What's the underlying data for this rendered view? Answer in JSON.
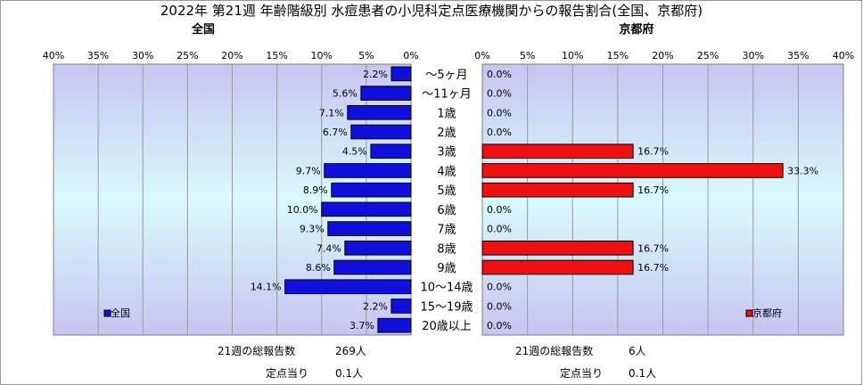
{
  "chart_data": {
    "type": "bar",
    "title": "2022年 第21週 年齢階級別 水痘患者の小児科定点医療機関からの報告割合(全国、京都府)",
    "categories": [
      "～5ヶ月",
      "～11ヶ月",
      "1歳",
      "2歳",
      "3歳",
      "4歳",
      "5歳",
      "6歳",
      "7歳",
      "8歳",
      "9歳",
      "10～14歳",
      "15～19歳",
      "20歳以上"
    ],
    "xlim": [
      0,
      40
    ],
    "tick_labels": [
      "0%",
      "5%",
      "10%",
      "15%",
      "20%",
      "25%",
      "30%",
      "35%",
      "40%"
    ],
    "grid": true,
    "panels": [
      {
        "title": "全国",
        "direction": "left",
        "series_name": "全国",
        "legend": "bottom-left",
        "bar_color": "#1010dd",
        "values": [
          2.2,
          5.6,
          7.1,
          6.7,
          4.5,
          9.7,
          8.9,
          10.0,
          9.3,
          7.4,
          8.6,
          14.1,
          2.2,
          3.7
        ],
        "value_labels": [
          "2.2%",
          "5.6%",
          "7.1%",
          "6.7%",
          "4.5%",
          "9.7%",
          "8.9%",
          "10.0%",
          "9.3%",
          "7.4%",
          "8.6%",
          "14.1%",
          "2.2%",
          "3.7%"
        ],
        "total_label": "21週の総報告数",
        "total_value": "269人",
        "per_site_label": "定点当り",
        "per_site_value": "0.1人"
      },
      {
        "title": "京都府",
        "direction": "right",
        "series_name": "京都府",
        "legend": "bottom-right",
        "bar_color": "#ee1111",
        "values": [
          0.0,
          0.0,
          0.0,
          0.0,
          16.7,
          33.3,
          16.7,
          0.0,
          0.0,
          16.7,
          16.7,
          0.0,
          0.0,
          0.0
        ],
        "value_labels": [
          "0.0%",
          "0.0%",
          "0.0%",
          "0.0%",
          "16.7%",
          "33.3%",
          "16.7%",
          "0.0%",
          "0.0%",
          "16.7%",
          "16.7%",
          "0.0%",
          "0.0%",
          "0.0%"
        ],
        "total_label": "21週の総報告数",
        "total_value": "6人",
        "per_site_label": "定点当り",
        "per_site_value": "0.1人"
      }
    ]
  }
}
